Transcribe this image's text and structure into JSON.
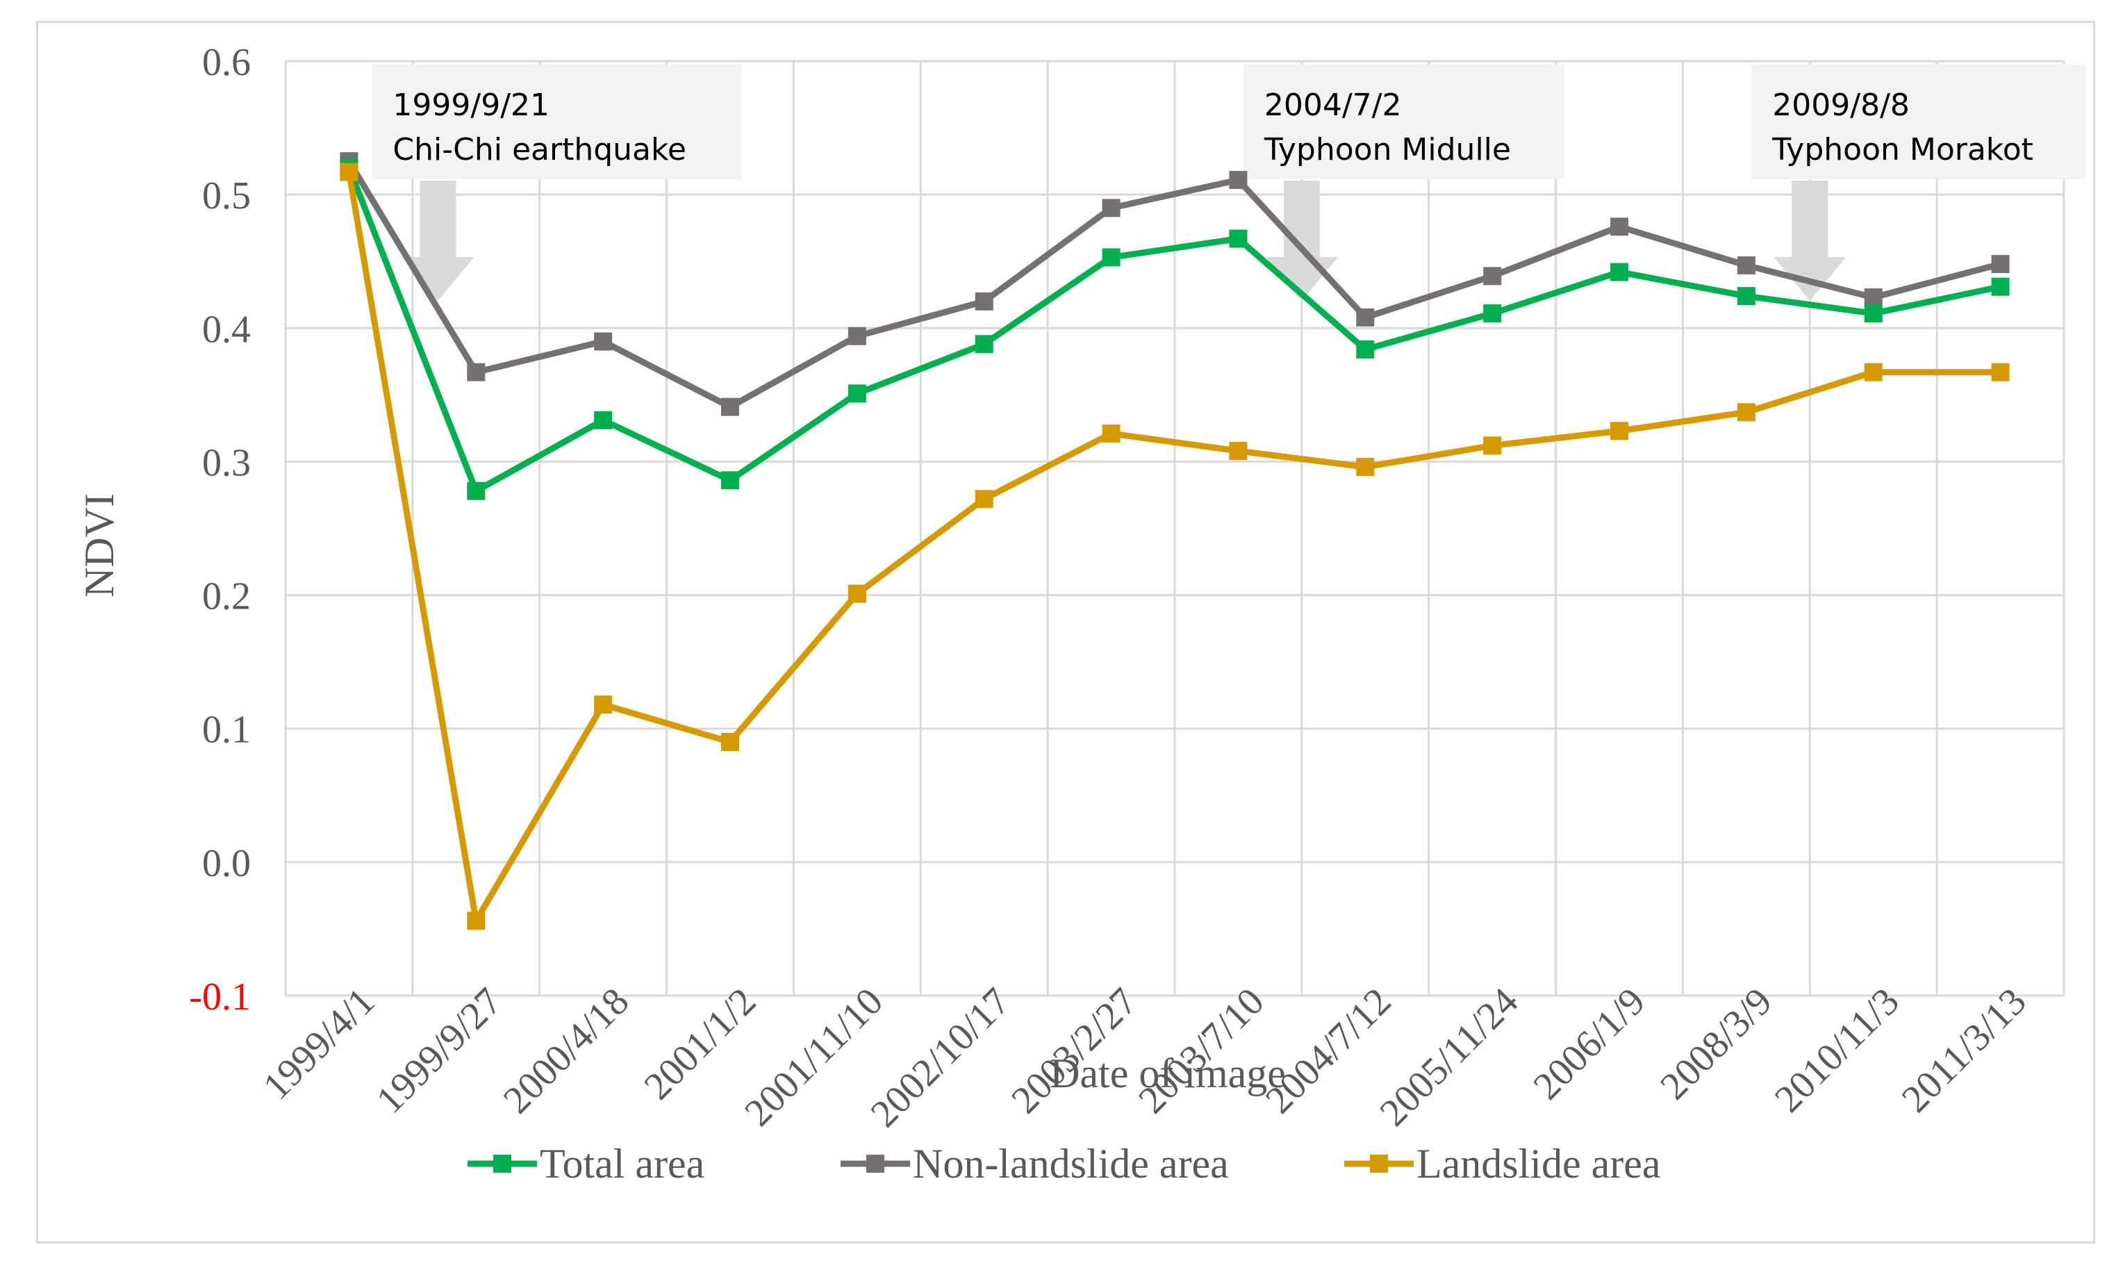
{
  "chart_data": {
    "type": "line",
    "title": "",
    "xlabel": "Date of image",
    "ylabel": "NDVI",
    "ylim": [
      -0.1,
      0.6
    ],
    "yticks": [
      "-0.1",
      "0.0",
      "0.1",
      "0.2",
      "0.3",
      "0.4",
      "0.5",
      "0.6"
    ],
    "ytick_values": [
      -0.1,
      0.0,
      0.1,
      0.2,
      0.3,
      0.4,
      0.5,
      0.6
    ],
    "grid": true,
    "legend_position": "bottom",
    "categories": [
      "1999/4/1",
      "1999/9/27",
      "2000/4/18",
      "2001/1/2",
      "2001/11/10",
      "2002/10/17",
      "2003/2/27",
      "2003/7/10",
      "2004/7/12",
      "2005/11/24",
      "2006/1/9",
      "2008/3/9",
      "2010/11/3",
      "2011/3/13"
    ],
    "series": [
      {
        "name": "Total area",
        "color": "#00b050",
        "values": [
          0.52,
          0.278,
          0.331,
          0.286,
          0.351,
          0.388,
          0.453,
          0.467,
          0.384,
          0.411,
          0.442,
          0.424,
          0.411,
          0.431
        ]
      },
      {
        "name": "Non-landslide area",
        "color": "#767171",
        "values": [
          0.525,
          0.367,
          0.39,
          0.341,
          0.394,
          0.42,
          0.49,
          0.511,
          0.408,
          0.439,
          0.476,
          0.447,
          0.423,
          0.448
        ]
      },
      {
        "name": "Landslide area",
        "color": "#d49a00",
        "values": [
          0.517,
          -0.044,
          0.118,
          0.09,
          0.201,
          0.272,
          0.321,
          0.308,
          0.296,
          0.312,
          0.323,
          0.337,
          0.367,
          0.367
        ]
      }
    ],
    "annotations": [
      {
        "date": "1999/9/21",
        "event": "Chi-Chi earthquake",
        "arrow_index": 0.7
      },
      {
        "date": "2004/7/2",
        "event": "Typhoon Midulle",
        "arrow_index": 7.5
      },
      {
        "date": "2009/8/8",
        "event": "Typhoon Morakot",
        "arrow_index": 11.5
      }
    ],
    "colors": {
      "negative_tick": "#ff0000",
      "axis_text": "#595959",
      "grid": "#d9d9d9",
      "annotation_box": "#f2f2f2",
      "annotation_arrow": "#d9d9d9"
    }
  }
}
